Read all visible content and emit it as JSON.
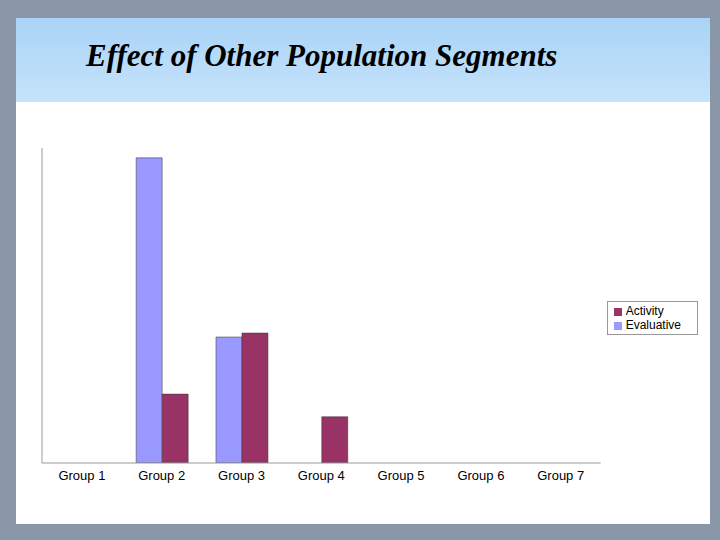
{
  "chart_data": {
    "type": "bar",
    "title": "Effect of Other Population Segments",
    "categories": [
      "Group 1",
      "Group 2",
      "Group 3",
      "Group 4",
      "Group 5",
      "Group 6",
      "Group 7"
    ],
    "series": [
      {
        "name": "Evaluative",
        "color": "#9999ff",
        "values": [
          0,
          310,
          128,
          0,
          0,
          0,
          0
        ]
      },
      {
        "name": "Activity",
        "color": "#993366",
        "values": [
          0,
          70,
          132,
          47,
          0,
          0,
          0
        ]
      }
    ],
    "ylim": [
      0,
      320
    ],
    "yticks": [],
    "tick_labels": "x",
    "legend": "right",
    "grid": false
  }
}
